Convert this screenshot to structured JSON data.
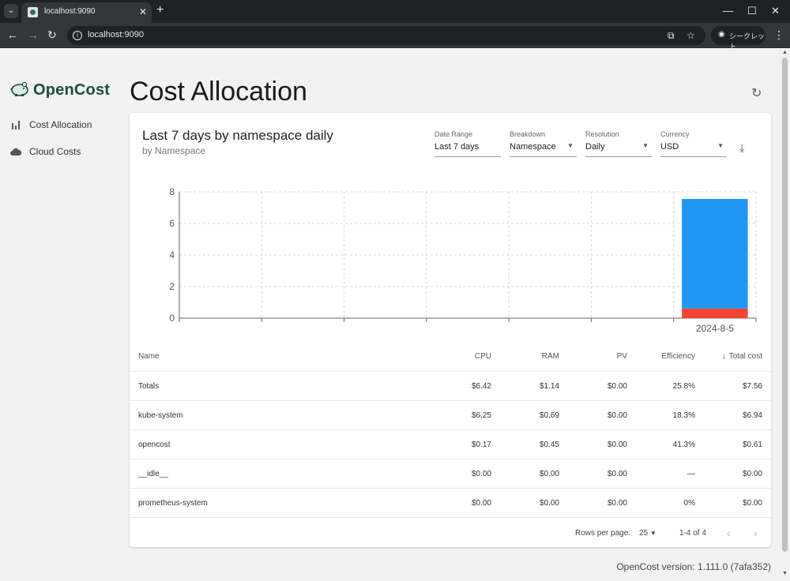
{
  "browser": {
    "tab_title": "localhost:9090",
    "url": "localhost:9090",
    "incognito_label": "シークレット"
  },
  "sidebar": {
    "logo": "OpenCost",
    "items": [
      {
        "label": "Cost Allocation",
        "icon": "bar-chart-icon"
      },
      {
        "label": "Cloud Costs",
        "icon": "cloud-icon"
      }
    ]
  },
  "header": {
    "title": "Cost Allocation"
  },
  "report": {
    "title": "Last 7 days by namespace daily",
    "subtitle": "by Namespace"
  },
  "controls": [
    {
      "label": "Date Range",
      "value": "Last 7 days",
      "dropdown": false
    },
    {
      "label": "Breakdown",
      "value": "Namespace",
      "dropdown": true
    },
    {
      "label": "Resolution",
      "value": "Daily",
      "dropdown": true
    },
    {
      "label": "Currency",
      "value": "USD",
      "dropdown": true
    }
  ],
  "chart_data": {
    "type": "bar",
    "stacked": true,
    "categories": [
      "",
      "",
      "",
      "",
      "",
      "",
      "2024-8-5"
    ],
    "series": [
      {
        "color": "#f44336",
        "values": [
          0,
          0,
          0,
          0,
          0,
          0,
          0.61
        ]
      },
      {
        "color": "#2196f3",
        "values": [
          0,
          0,
          0,
          0,
          0,
          0,
          6.94
        ]
      }
    ],
    "yticks": [
      0,
      2,
      4,
      6,
      8
    ],
    "ylim": [
      0,
      8
    ],
    "grid": true
  },
  "table": {
    "columns": [
      "Name",
      "CPU",
      "RAM",
      "PV",
      "Efficiency",
      "Total cost"
    ],
    "rows": [
      [
        "Totals",
        "$6.42",
        "$1.14",
        "$0.00",
        "25.8%",
        "$7.56"
      ],
      [
        "kube-system",
        "$6.25",
        "$0.69",
        "$0.00",
        "18.3%",
        "$6.94"
      ],
      [
        "opencost",
        "$0.17",
        "$0.45",
        "$0.00",
        "41.3%",
        "$0.61"
      ],
      [
        "__idle__",
        "$0.00",
        "$0.00",
        "$0.00",
        "—",
        "$0.00"
      ],
      [
        "prometheus-system",
        "$0.00",
        "$0.00",
        "$0.00",
        "0%",
        "$0.00"
      ]
    ]
  },
  "pagination": {
    "rows_per_page_label": "Rows per page:",
    "rows_per_page": "25",
    "range": "1-4 of 4"
  },
  "footer": {
    "version": "OpenCost version: 1.111.0 (7afa352)"
  }
}
